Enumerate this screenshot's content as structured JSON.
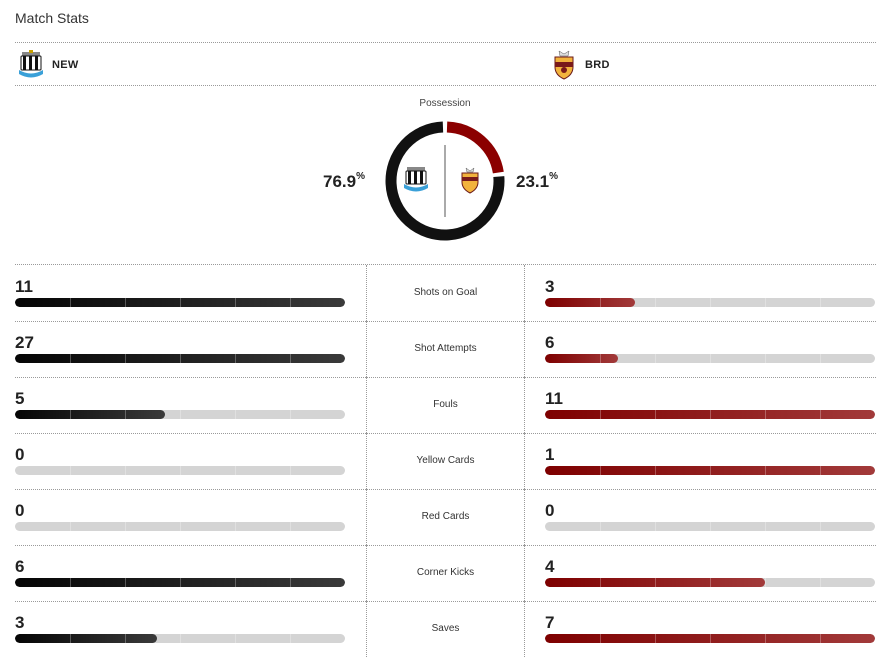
{
  "header": {
    "title": "Match Stats"
  },
  "teams": {
    "home": {
      "abbr": "NEW",
      "crest_icon": "newcastle-crest-icon"
    },
    "away": {
      "abbr": "BRD",
      "crest_icon": "bradford-crest-icon"
    }
  },
  "possession": {
    "label": "Possession",
    "home_pct": "76.9",
    "away_pct": "23.1",
    "unit": "%",
    "home_value": 76.9,
    "away_value": 23.1
  },
  "colors": {
    "home": "#111111",
    "away": "#8b0000",
    "track": "#d4d4d4"
  },
  "stats": [
    {
      "label": "Shots on Goal",
      "home": "11",
      "away": "3",
      "home_fill": 1.0,
      "away_fill": 0.273
    },
    {
      "label": "Shot Attempts",
      "home": "27",
      "away": "6",
      "home_fill": 1.0,
      "away_fill": 0.222
    },
    {
      "label": "Fouls",
      "home": "5",
      "away": "11",
      "home_fill": 0.455,
      "away_fill": 1.0
    },
    {
      "label": "Yellow Cards",
      "home": "0",
      "away": "1",
      "home_fill": 0.0,
      "away_fill": 1.0
    },
    {
      "label": "Red Cards",
      "home": "0",
      "away": "0",
      "home_fill": 0.0,
      "away_fill": 0.0
    },
    {
      "label": "Corner Kicks",
      "home": "6",
      "away": "4",
      "home_fill": 1.0,
      "away_fill": 0.667
    },
    {
      "label": "Saves",
      "home": "3",
      "away": "7",
      "home_fill": 0.429,
      "away_fill": 1.0
    }
  ]
}
